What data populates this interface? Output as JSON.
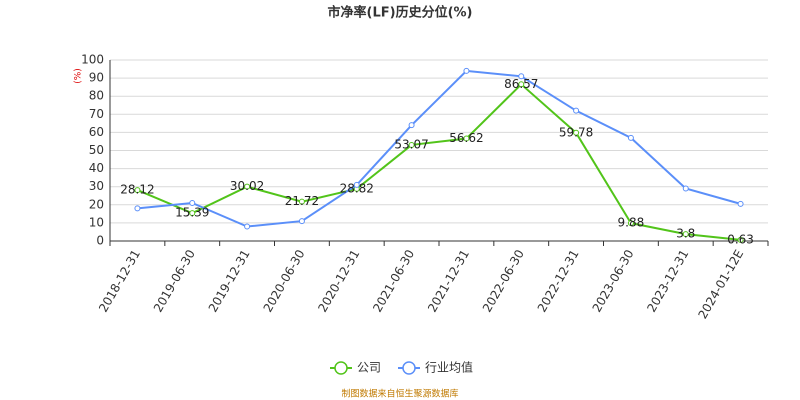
{
  "chart_data": {
    "type": "line",
    "title": "市净率(LF)历史分位(%)",
    "y_label": "(%)",
    "categories": [
      "2018-12-31",
      "2019-06-30",
      "2019-12-31",
      "2020-06-30",
      "2020-12-31",
      "2021-06-30",
      "2021-12-31",
      "2022-06-30",
      "2022-12-31",
      "2023-06-30",
      "2023-12-31",
      "2024-01-12E"
    ],
    "series": [
      {
        "name": "公司",
        "color": "#52c41a",
        "values": [
          28.12,
          15.39,
          30.02,
          21.72,
          28.82,
          53.07,
          56.62,
          86.57,
          59.78,
          9.88,
          3.8,
          0.63
        ],
        "labels": true
      },
      {
        "name": "行业均值",
        "color": "#5b8ff9",
        "values": [
          18,
          21,
          8,
          11,
          31,
          64,
          94,
          91,
          72,
          57,
          29,
          20.5
        ],
        "labels": false
      }
    ],
    "ylim": [
      0,
      100
    ],
    "yticks": [
      0,
      10,
      20,
      30,
      40,
      50,
      60,
      70,
      80,
      90,
      100
    ],
    "grid": true,
    "source": "制图数据来自恒生聚源数据库"
  }
}
